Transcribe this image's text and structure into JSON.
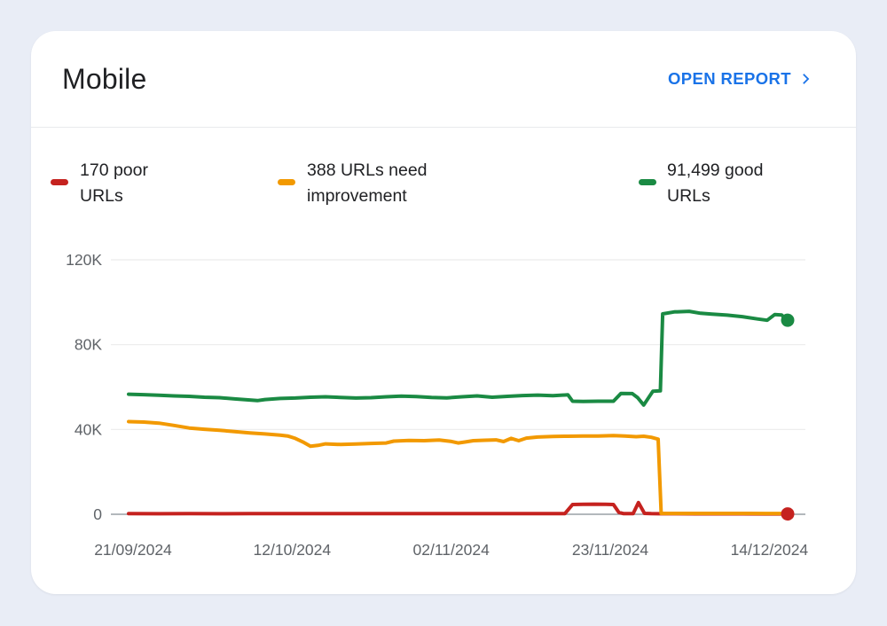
{
  "header": {
    "title": "Mobile",
    "open_report_label": "OPEN REPORT"
  },
  "colors": {
    "page_bg": "#e9edf6",
    "card_bg": "#ffffff",
    "accent_blue": "#1a73e8",
    "text_dark": "#202124",
    "axis_text": "#5f6368",
    "grid_line": "#ececec",
    "zero_line": "#9aa0a6",
    "poor_red": "#c5221f",
    "improve_orange": "#f29900",
    "good_green": "#1a8a43"
  },
  "legend": {
    "items": [
      {
        "label": "170 poor URLs",
        "count": "170",
        "color": "#c5221f"
      },
      {
        "label": "388 URLs need improvement",
        "count": "388",
        "color": "#f29900"
      },
      {
        "label": "91,499 good URLs",
        "count": "91,499",
        "color": "#1a8a43"
      }
    ]
  },
  "chart_data": {
    "type": "line",
    "title": "Core Web Vitals URL counts over time (Mobile)",
    "x_unit": "days since 21/09/2024",
    "x_domain_days": [
      0,
      87
    ],
    "x_ticks": [
      {
        "day": 0,
        "label": "21/09/2024"
      },
      {
        "day": 21,
        "label": "12/10/2024"
      },
      {
        "day": 42,
        "label": "02/11/2024"
      },
      {
        "day": 63,
        "label": "23/11/2024"
      },
      {
        "day": 84,
        "label": "14/12/2024"
      }
    ],
    "y_ticks": [
      {
        "value": 0,
        "label": "0"
      },
      {
        "value": 40000,
        "label": "40K"
      },
      {
        "value": 80000,
        "label": "80K"
      },
      {
        "value": 120000,
        "label": "120K"
      }
    ],
    "ylim": [
      0,
      120000
    ],
    "grid": true,
    "legend_position": "top",
    "series": [
      {
        "name": "poor URLs",
        "color": "#c5221f",
        "end_dot": true,
        "end_value": 170,
        "points": [
          [
            0,
            300
          ],
          [
            4,
            260
          ],
          [
            8,
            300
          ],
          [
            12,
            270
          ],
          [
            16,
            300
          ],
          [
            20,
            280
          ],
          [
            24,
            300
          ],
          [
            28,
            280
          ],
          [
            32,
            300
          ],
          [
            36,
            290
          ],
          [
            40,
            300
          ],
          [
            44,
            280
          ],
          [
            48,
            300
          ],
          [
            52,
            290
          ],
          [
            55,
            300
          ],
          [
            57.6,
            350
          ],
          [
            58.6,
            4600
          ],
          [
            60,
            4700
          ],
          [
            61.5,
            4750
          ],
          [
            63,
            4700
          ],
          [
            64,
            4600
          ],
          [
            64.7,
            900
          ],
          [
            65.3,
            350
          ],
          [
            66.6,
            350
          ],
          [
            67.3,
            5500
          ],
          [
            68.1,
            400
          ],
          [
            69,
            300
          ],
          [
            70,
            250
          ],
          [
            72,
            230
          ],
          [
            75,
            210
          ],
          [
            78,
            200
          ],
          [
            81,
            190
          ],
          [
            84,
            180
          ],
          [
            87,
            170
          ]
        ]
      },
      {
        "name": "URLs need improvement",
        "color": "#f29900",
        "end_dot": false,
        "end_value": 388,
        "points": [
          [
            0,
            43700
          ],
          [
            2,
            43500
          ],
          [
            4,
            43000
          ],
          [
            6,
            41900
          ],
          [
            8,
            40700
          ],
          [
            10,
            40100
          ],
          [
            12,
            39600
          ],
          [
            14,
            39000
          ],
          [
            16,
            38400
          ],
          [
            18,
            37900
          ],
          [
            20,
            37300
          ],
          [
            21,
            36900
          ],
          [
            22,
            35800
          ],
          [
            23,
            34100
          ],
          [
            24,
            32100
          ],
          [
            25,
            32500
          ],
          [
            26,
            33200
          ],
          [
            28,
            32900
          ],
          [
            30,
            33100
          ],
          [
            32,
            33400
          ],
          [
            34,
            33600
          ],
          [
            35,
            34500
          ],
          [
            37,
            34800
          ],
          [
            39,
            34700
          ],
          [
            41,
            35000
          ],
          [
            42.5,
            34400
          ],
          [
            43.5,
            33600
          ],
          [
            44.5,
            34100
          ],
          [
            45.5,
            34700
          ],
          [
            47,
            34900
          ],
          [
            48.5,
            35100
          ],
          [
            49.5,
            34300
          ],
          [
            50.5,
            35800
          ],
          [
            51.5,
            34700
          ],
          [
            52.5,
            35900
          ],
          [
            54,
            36400
          ],
          [
            56,
            36700
          ],
          [
            58,
            36800
          ],
          [
            60,
            36900
          ],
          [
            62,
            36900
          ],
          [
            64,
            37100
          ],
          [
            65.5,
            36900
          ],
          [
            67,
            36600
          ],
          [
            68,
            36800
          ],
          [
            69,
            36300
          ],
          [
            69.9,
            35400
          ],
          [
            70.3,
            400
          ],
          [
            72,
            410
          ],
          [
            74,
            430
          ],
          [
            76,
            400
          ],
          [
            78,
            405
          ],
          [
            80,
            415
          ],
          [
            82,
            400
          ],
          [
            84,
            395
          ],
          [
            86,
            390
          ],
          [
            87,
            388
          ]
        ]
      },
      {
        "name": "good URLs",
        "color": "#1a8a43",
        "end_dot": true,
        "end_value": 91499,
        "points": [
          [
            0,
            56600
          ],
          [
            2,
            56400
          ],
          [
            4,
            56100
          ],
          [
            6,
            55800
          ],
          [
            8,
            55600
          ],
          [
            10,
            55200
          ],
          [
            12,
            55000
          ],
          [
            14,
            54400
          ],
          [
            16,
            53900
          ],
          [
            17,
            53600
          ],
          [
            18,
            54100
          ],
          [
            20,
            54600
          ],
          [
            22,
            54800
          ],
          [
            24,
            55200
          ],
          [
            26,
            55400
          ],
          [
            28,
            55100
          ],
          [
            30,
            54800
          ],
          [
            32,
            55000
          ],
          [
            34,
            55400
          ],
          [
            36,
            55700
          ],
          [
            38,
            55500
          ],
          [
            40,
            55100
          ],
          [
            42,
            54900
          ],
          [
            44,
            55400
          ],
          [
            46,
            55800
          ],
          [
            48,
            55200
          ],
          [
            50,
            55600
          ],
          [
            52,
            56000
          ],
          [
            54,
            56200
          ],
          [
            56,
            55900
          ],
          [
            58,
            56300
          ],
          [
            58.6,
            53300
          ],
          [
            60,
            53200
          ],
          [
            62,
            53300
          ],
          [
            64,
            53300
          ],
          [
            65,
            57000
          ],
          [
            66.5,
            56900
          ],
          [
            67.2,
            55000
          ],
          [
            68,
            51500
          ],
          [
            69.2,
            58000
          ],
          [
            70.2,
            58200
          ],
          [
            70.5,
            94500
          ],
          [
            72,
            95400
          ],
          [
            74,
            95700
          ],
          [
            75.5,
            94800
          ],
          [
            77,
            94400
          ],
          [
            79,
            93900
          ],
          [
            81,
            93200
          ],
          [
            83,
            92100
          ],
          [
            84.3,
            91500
          ],
          [
            85.3,
            94200
          ],
          [
            86.2,
            94000
          ],
          [
            87,
            91499
          ]
        ]
      }
    ]
  }
}
